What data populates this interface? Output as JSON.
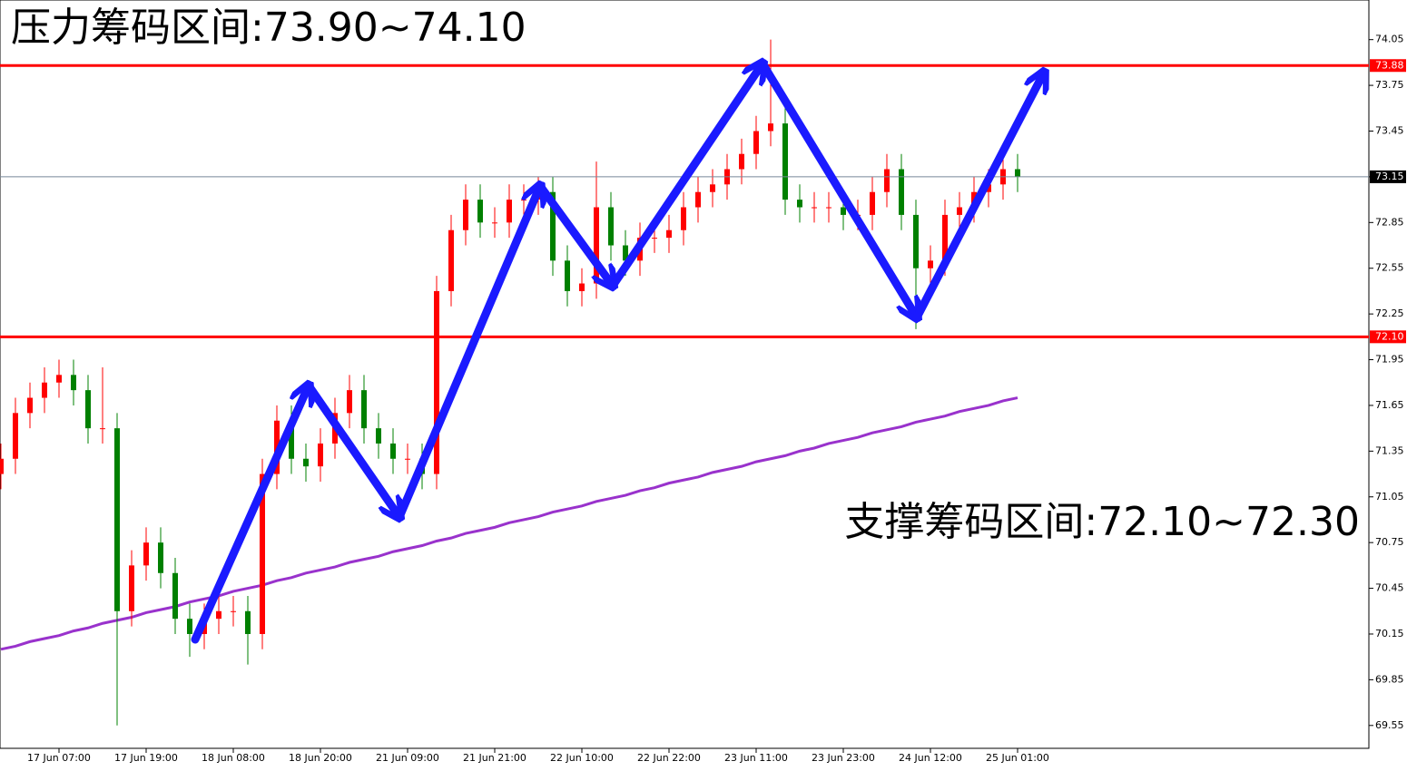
{
  "chart_data": {
    "type": "candlestick",
    "annotations": [
      "压力筹码区间:73.90~74.10",
      "支撑筹码区间:72.10~72.30"
    ],
    "categories": [
      null,
      null,
      null,
      null,
      "17 Jun 07:00",
      null,
      null,
      null,
      null,
      null,
      "17 Jun 19:00",
      null,
      null,
      null,
      null,
      null,
      "18 Jun 08:00",
      null,
      null,
      null,
      null,
      null,
      "18 Jun 20:00",
      null,
      null,
      null,
      null,
      null,
      "21 Jun 09:00",
      null,
      null,
      null,
      null,
      null,
      "21 Jun 21:00",
      null,
      null,
      null,
      null,
      null,
      "22 Jun 10:00",
      null,
      null,
      null,
      null,
      null,
      "22 Jun 22:00",
      null,
      null,
      null,
      null,
      null,
      "23 Jun 11:00",
      null,
      null,
      null,
      null,
      null,
      "23 Jun 23:00",
      null,
      null,
      null,
      null,
      null,
      "24 Jun 12:00",
      null,
      null,
      null,
      null,
      null,
      "25 Jun 01:00"
    ],
    "open": [
      71.2,
      71.3,
      71.6,
      71.7,
      71.8,
      71.85,
      71.75,
      71.5,
      71.5,
      70.3,
      70.6,
      70.75,
      70.55,
      70.25,
      70.15,
      70.25,
      70.3,
      70.3,
      70.15,
      71.2,
      71.55,
      71.3,
      71.25,
      71.4,
      71.6,
      71.75,
      71.5,
      71.4,
      71.3,
      71.3,
      71.2,
      72.4,
      72.8,
      73.0,
      72.85,
      72.85,
      73.0,
      73.0,
      73.05,
      72.6,
      72.4,
      72.45,
      72.95,
      72.7,
      72.6,
      72.75,
      72.75,
      72.8,
      72.95,
      73.05,
      73.1,
      73.2,
      73.3,
      73.45,
      73.5,
      73.0,
      72.95,
      72.95,
      72.95,
      72.9,
      72.9,
      73.05,
      73.2,
      72.9,
      72.55,
      72.6,
      72.9,
      72.95,
      73.05,
      73.1,
      73.2
    ],
    "high": [
      71.4,
      71.7,
      71.8,
      71.9,
      71.95,
      71.95,
      71.85,
      71.9,
      71.6,
      70.7,
      70.85,
      70.85,
      70.65,
      70.35,
      70.35,
      70.4,
      70.4,
      70.4,
      71.3,
      71.65,
      71.65,
      71.4,
      71.5,
      71.7,
      71.85,
      71.85,
      71.6,
      71.5,
      71.4,
      71.4,
      72.5,
      72.9,
      73.1,
      73.1,
      72.95,
      73.1,
      73.1,
      73.15,
      73.15,
      72.7,
      72.55,
      73.25,
      73.05,
      72.8,
      72.85,
      72.85,
      72.9,
      73.05,
      73.15,
      73.2,
      73.3,
      73.4,
      73.55,
      74.05,
      73.6,
      73.1,
      73.05,
      73.05,
      73.05,
      73.0,
      73.15,
      73.3,
      73.3,
      73.0,
      72.7,
      73.0,
      73.05,
      73.15,
      73.2,
      73.3,
      73.3
    ],
    "low": [
      71.1,
      71.2,
      71.5,
      71.6,
      71.7,
      71.65,
      71.4,
      71.4,
      69.55,
      70.2,
      70.5,
      70.45,
      70.15,
      70.0,
      70.05,
      70.15,
      70.2,
      69.95,
      70.05,
      71.1,
      71.2,
      71.15,
      71.15,
      71.3,
      71.5,
      71.4,
      71.3,
      71.2,
      71.2,
      71.1,
      71.1,
      72.3,
      72.7,
      72.75,
      72.75,
      72.75,
      72.9,
      72.9,
      72.5,
      72.3,
      72.3,
      72.35,
      72.6,
      72.5,
      72.5,
      72.65,
      72.65,
      72.7,
      72.85,
      72.95,
      73.0,
      73.1,
      73.2,
      73.35,
      72.9,
      72.85,
      72.85,
      72.85,
      72.8,
      72.8,
      72.8,
      72.95,
      72.8,
      72.15,
      72.45,
      72.5,
      72.8,
      72.85,
      72.95,
      73.0,
      73.05
    ],
    "close": [
      71.3,
      71.6,
      71.7,
      71.8,
      71.85,
      71.75,
      71.5,
      71.5,
      70.3,
      70.6,
      70.75,
      70.55,
      70.25,
      70.15,
      70.25,
      70.3,
      70.3,
      70.15,
      71.2,
      71.55,
      71.3,
      71.25,
      71.4,
      71.6,
      71.75,
      71.5,
      71.4,
      71.3,
      71.3,
      71.2,
      72.4,
      72.8,
      73.0,
      72.85,
      72.85,
      73.0,
      73.0,
      73.05,
      72.6,
      72.4,
      72.45,
      72.95,
      72.7,
      72.6,
      72.75,
      72.75,
      72.8,
      72.95,
      73.05,
      73.1,
      73.2,
      73.3,
      73.45,
      73.5,
      73.0,
      72.95,
      72.95,
      72.95,
      72.9,
      72.9,
      73.05,
      73.2,
      72.9,
      72.55,
      72.6,
      72.9,
      72.95,
      73.05,
      73.1,
      73.2,
      73.15
    ],
    "up_color": "#ff0000",
    "down_color": "#008000",
    "overlays": [
      {
        "color": "#9932cc",
        "values": [
          70.05,
          70.07,
          70.1,
          70.12,
          70.14,
          70.17,
          70.19,
          70.22,
          70.24,
          70.26,
          70.29,
          70.31,
          70.33,
          70.36,
          70.38,
          70.4,
          70.43,
          70.45,
          70.47,
          70.5,
          70.52,
          70.55,
          70.57,
          70.59,
          70.62,
          70.64,
          70.66,
          70.69,
          70.71,
          70.73,
          70.76,
          70.78,
          70.81,
          70.83,
          70.85,
          70.88,
          70.9,
          70.92,
          70.95,
          70.97,
          70.99,
          71.02,
          71.04,
          71.06,
          71.09,
          71.11,
          71.14,
          71.16,
          71.18,
          71.21,
          71.23,
          71.25,
          71.28,
          71.3,
          71.32,
          71.35,
          71.37,
          71.4,
          71.42,
          71.44,
          71.47,
          71.49,
          71.51,
          71.54,
          71.56,
          71.58,
          71.61,
          71.63,
          71.65,
          71.68,
          71.7
        ]
      }
    ],
    "levels": [
      {
        "value": 73.88,
        "color": "#ff0000"
      },
      {
        "value": 72.1,
        "label": "72.10",
        "color": "#ff0000"
      }
    ],
    "current_price": {
      "value": 73.15,
      "color": "#000000"
    },
    "ylim": [
      69.4,
      74.31
    ],
    "yticks": [
      69.55,
      69.85,
      70.15,
      70.45,
      70.75,
      71.05,
      71.35,
      71.65,
      71.95,
      72.25,
      72.55,
      72.85,
      73.15,
      73.45,
      73.75,
      74.05
    ]
  }
}
